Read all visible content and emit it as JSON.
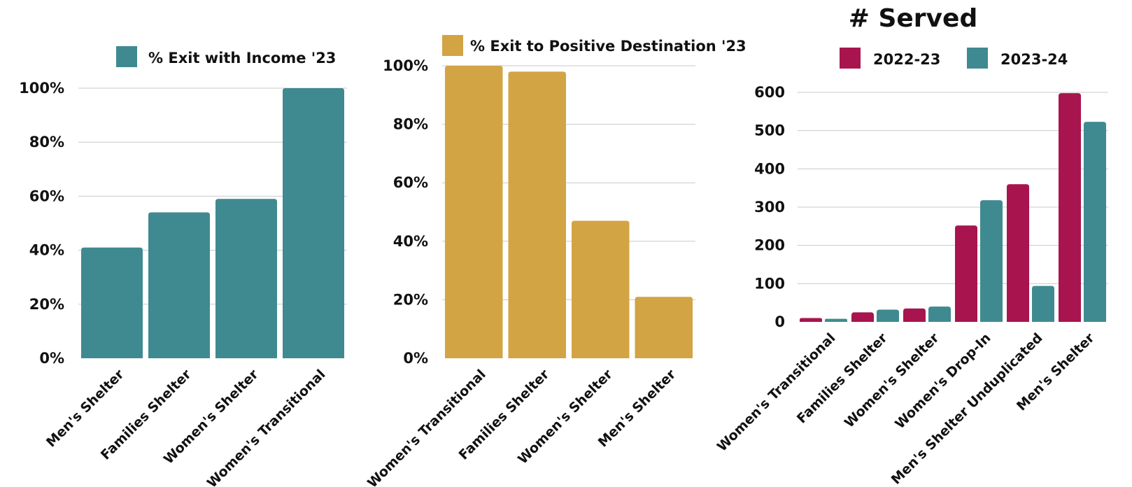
{
  "chart_data": [
    {
      "type": "bar",
      "title": "",
      "categories": [
        "Men's Shelter",
        "Families Shelter",
        "Women's Shelter",
        "Women's Transitional"
      ],
      "series": [
        {
          "name": "% Exit with Income '23",
          "values": [
            41,
            54,
            59,
            100
          ],
          "color": "#3f8a91"
        }
      ],
      "ylim": [
        0,
        100
      ],
      "yticks": [
        "0%",
        "20%",
        "40%",
        "60%",
        "80%",
        "100%"
      ],
      "grid": true,
      "legend": "top"
    },
    {
      "type": "bar",
      "title": "",
      "categories": [
        "Women's Transitional",
        "Families Shelter",
        "Women's Shelter",
        "Men's Shelter"
      ],
      "series": [
        {
          "name": "% Exit to Positive Destination '23",
          "values": [
            100,
            98,
            47,
            21
          ],
          "color": "#d2a444"
        }
      ],
      "ylim": [
        0,
        100
      ],
      "yticks": [
        "0%",
        "20%",
        "40%",
        "60%",
        "80%",
        "100%"
      ],
      "grid": true,
      "legend": "top"
    },
    {
      "type": "bar",
      "title": "# Served",
      "categories": [
        "Women's Transitional",
        "Families Shelter",
        "Women's Shelter",
        "Women's Drop-In",
        "Men's Shelter Unduplicated",
        "Men's Shelter"
      ],
      "series": [
        {
          "name": "2022-23",
          "values": [
            10,
            25,
            35,
            252,
            360,
            598
          ],
          "color": "#a8144e"
        },
        {
          "name": "2023-24",
          "values": [
            8,
            32,
            40,
            318,
            94,
            523
          ],
          "color": "#3f8a91"
        }
      ],
      "ylim": [
        0,
        600
      ],
      "yticks": [
        "0",
        "100",
        "200",
        "300",
        "400",
        "500",
        "600"
      ],
      "grid": true,
      "legend": "top"
    }
  ]
}
